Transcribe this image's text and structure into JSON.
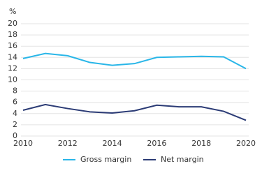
{
  "chart_data": {
    "type": "line",
    "y_label": "%",
    "x": [
      2010,
      2011,
      2012,
      2013,
      2014,
      2015,
      2016,
      2017,
      2018,
      2019,
      2020
    ],
    "xlim": [
      2010,
      2020
    ],
    "xticks": [
      2010,
      2012,
      2014,
      2016,
      2018,
      2020
    ],
    "ylim": [
      0,
      20
    ],
    "yticks": [
      0,
      2,
      4,
      6,
      8,
      10,
      12,
      14,
      16,
      18,
      20
    ],
    "grid": true,
    "legend": "bottom",
    "series": [
      {
        "name": "Gross margin",
        "color": "#29b6e8",
        "values": [
          13.8,
          14.7,
          14.3,
          13.1,
          12.6,
          12.9,
          14.0,
          14.1,
          14.2,
          14.1,
          12.0
        ]
      },
      {
        "name": "Net margin",
        "color": "#2b3b75",
        "values": [
          4.6,
          5.6,
          4.9,
          4.3,
          4.1,
          4.5,
          5.5,
          5.2,
          5.2,
          4.4,
          2.8
        ]
      }
    ]
  }
}
